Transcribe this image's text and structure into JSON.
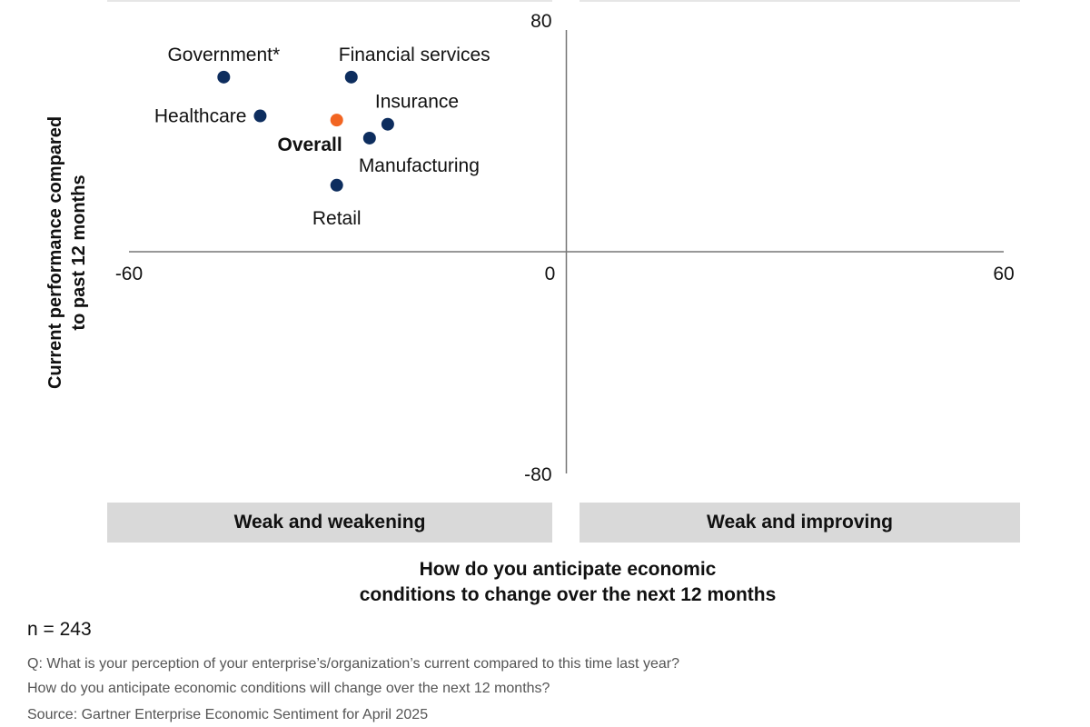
{
  "chart_data": {
    "type": "scatter",
    "xlim": [
      -60,
      60
    ],
    "ylim": [
      -80,
      80
    ],
    "x_ticks": [
      "-60",
      "0",
      "60"
    ],
    "y_ticks": [
      "80",
      "-80"
    ],
    "xlabel_lines": [
      "How do you anticipate economic",
      "conditions to change over the next 12 months"
    ],
    "ylabel_lines": [
      "Current performance compared",
      "to past 12 months"
    ],
    "quadrant_labels": [
      "Weak and weakening",
      "Weak and improving"
    ],
    "grid": false,
    "points": [
      {
        "label": "Government*",
        "x": -47,
        "y": 63,
        "color": "#0d2d5e",
        "bold": false,
        "label_pos": "above"
      },
      {
        "label": "Financial services",
        "x": -29.5,
        "y": 63,
        "color": "#0d2d5e",
        "bold": false,
        "label_pos": "above-right"
      },
      {
        "label": "Healthcare",
        "x": -42,
        "y": 49,
        "color": "#0d2d5e",
        "bold": false,
        "label_pos": "left"
      },
      {
        "label": "Overall",
        "x": -31.5,
        "y": 47.5,
        "color": "#f26522",
        "bold": true,
        "label_pos": "below-left"
      },
      {
        "label": "Insurance",
        "x": -24.5,
        "y": 46,
        "color": "#0d2d5e",
        "bold": false,
        "label_pos": "above-right"
      },
      {
        "label": "Manufacturing",
        "x": -27,
        "y": 41,
        "color": "#0d2d5e",
        "bold": false,
        "label_pos": "below-right"
      },
      {
        "label": "Retail",
        "x": -31.5,
        "y": 24,
        "color": "#0d2d5e",
        "bold": false,
        "label_pos": "below"
      }
    ]
  },
  "footer": {
    "n": "n = 243",
    "q1": "Q: What is your perception of your enterprise’s/organization’s current compared to this time last year?",
    "q2": "How do you anticipate economic conditions will change over the next 12 months?",
    "source": "Source: Gartner Enterprise Economic Sentiment for April 2025"
  },
  "colors": {
    "point": "#0d2d5e",
    "overall": "#f26522",
    "band": "#d9d9d9",
    "axis": "#777777"
  }
}
